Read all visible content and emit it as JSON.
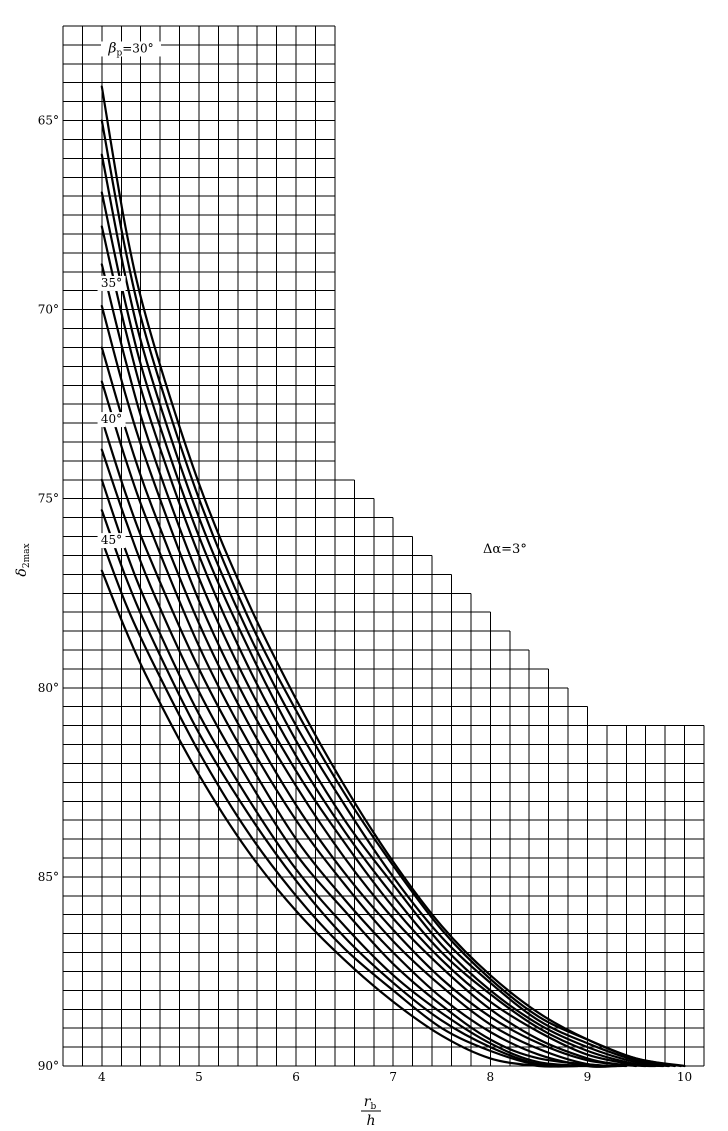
{
  "chart_data": {
    "type": "line",
    "title": "",
    "x_ticks": [
      "4",
      "5",
      "6",
      "7",
      "8",
      "9",
      "10"
    ],
    "y_ticks": [
      "65°",
      "70°",
      "75°",
      "80°",
      "85°",
      "90°"
    ],
    "xlabel": {
      "numerator": "r",
      "numerator_sub": "b",
      "denominator": "h"
    },
    "ylabel": {
      "symbol": "δ",
      "sub": "2max"
    },
    "xlim": [
      3.6,
      10.2
    ],
    "ylim": [
      62.5,
      90
    ],
    "y_reversed": true,
    "grid": true,
    "annotation": "Δα=3°",
    "series_labels": [
      {
        "text": "β",
        "sub": "p",
        "suffix": "=30°",
        "x": 4.3,
        "y": 63.2
      },
      {
        "text": "35°",
        "x": 4.1,
        "y": 69.4
      },
      {
        "text": "40°",
        "x": 4.1,
        "y": 73.0
      },
      {
        "text": "45°",
        "x": 4.1,
        "y": 76.2
      }
    ],
    "series": [
      {
        "name": "β_p=30°",
        "points": [
          [
            4.0,
            64.1
          ],
          [
            4.25,
            67.9
          ],
          [
            4.5,
            70.6
          ],
          [
            5.0,
            74.6
          ],
          [
            5.5,
            77.7
          ],
          [
            6.0,
            80.3
          ],
          [
            6.5,
            82.6
          ],
          [
            7.0,
            84.6
          ],
          [
            7.5,
            86.3
          ],
          [
            8.0,
            87.6
          ],
          [
            8.5,
            88.6
          ],
          [
            9.0,
            89.3
          ],
          [
            9.5,
            89.8
          ],
          [
            10.0,
            90.0
          ]
        ]
      },
      {
        "name": "",
        "points": [
          [
            4.0,
            65.0
          ],
          [
            4.25,
            68.5
          ],
          [
            4.5,
            71.1
          ],
          [
            5.0,
            75.0
          ],
          [
            5.5,
            78.1
          ],
          [
            6.0,
            80.6
          ],
          [
            6.5,
            82.8
          ],
          [
            7.0,
            84.7
          ],
          [
            7.5,
            86.4
          ],
          [
            8.0,
            87.7
          ],
          [
            8.5,
            88.7
          ],
          [
            9.0,
            89.3
          ],
          [
            9.5,
            89.8
          ],
          [
            9.96,
            90.0
          ]
        ]
      },
      {
        "name": "",
        "points": [
          [
            4.0,
            65.9
          ],
          [
            4.25,
            69.2
          ],
          [
            4.5,
            71.7
          ],
          [
            5.0,
            75.5
          ],
          [
            5.5,
            78.5
          ],
          [
            6.0,
            81.0
          ],
          [
            6.5,
            83.1
          ],
          [
            7.0,
            85.0
          ],
          [
            7.5,
            86.6
          ],
          [
            8.0,
            87.8
          ],
          [
            8.5,
            88.8
          ],
          [
            9.0,
            89.4
          ],
          [
            9.5,
            89.85
          ],
          [
            9.9,
            90.0
          ]
        ]
      },
      {
        "name": "",
        "points": [
          [
            4.0,
            66.9
          ],
          [
            4.25,
            69.9
          ],
          [
            4.5,
            72.3
          ],
          [
            5.0,
            76.0
          ],
          [
            5.5,
            78.9
          ],
          [
            6.0,
            81.4
          ],
          [
            6.5,
            83.5
          ],
          [
            7.0,
            85.2
          ],
          [
            7.5,
            86.8
          ],
          [
            8.0,
            88.0
          ],
          [
            8.5,
            88.9
          ],
          [
            9.0,
            89.5
          ],
          [
            9.5,
            89.9
          ],
          [
            9.84,
            90.0
          ]
        ]
      },
      {
        "name": "35°",
        "points": [
          [
            4.0,
            67.8
          ],
          [
            4.25,
            70.6
          ],
          [
            4.5,
            72.9
          ],
          [
            5.0,
            76.5
          ],
          [
            5.5,
            79.4
          ],
          [
            6.0,
            81.8
          ],
          [
            6.5,
            83.8
          ],
          [
            7.0,
            85.5
          ],
          [
            7.5,
            87.0
          ],
          [
            8.0,
            88.1
          ],
          [
            8.5,
            89.0
          ],
          [
            9.0,
            89.6
          ],
          [
            9.5,
            89.95
          ],
          [
            9.78,
            90.0
          ]
        ]
      },
      {
        "name": "",
        "points": [
          [
            4.0,
            68.8
          ],
          [
            4.25,
            71.4
          ],
          [
            4.5,
            73.6
          ],
          [
            5.0,
            77.1
          ],
          [
            5.5,
            79.9
          ],
          [
            6.0,
            82.2
          ],
          [
            6.5,
            84.1
          ],
          [
            7.0,
            85.8
          ],
          [
            7.5,
            87.2
          ],
          [
            8.0,
            88.3
          ],
          [
            8.5,
            89.1
          ],
          [
            9.0,
            89.7
          ],
          [
            9.5,
            89.97
          ],
          [
            9.7,
            90.0
          ]
        ]
      },
      {
        "name": "",
        "points": [
          [
            4.0,
            69.9
          ],
          [
            4.25,
            72.3
          ],
          [
            4.5,
            74.3
          ],
          [
            5.0,
            77.7
          ],
          [
            5.5,
            80.4
          ],
          [
            6.0,
            82.6
          ],
          [
            6.5,
            84.5
          ],
          [
            7.0,
            86.1
          ],
          [
            7.5,
            87.4
          ],
          [
            8.0,
            88.5
          ],
          [
            8.5,
            89.3
          ],
          [
            9.0,
            89.8
          ],
          [
            9.3,
            89.95
          ],
          [
            9.6,
            90.0
          ]
        ]
      },
      {
        "name": "",
        "points": [
          [
            4.0,
            71.0
          ],
          [
            4.25,
            73.2
          ],
          [
            4.5,
            75.1
          ],
          [
            5.0,
            78.3
          ],
          [
            5.5,
            80.9
          ],
          [
            6.0,
            83.1
          ],
          [
            6.5,
            84.9
          ],
          [
            7.0,
            86.4
          ],
          [
            7.5,
            87.7
          ],
          [
            8.0,
            88.7
          ],
          [
            8.5,
            89.4
          ],
          [
            9.0,
            89.85
          ],
          [
            9.5,
            90.0
          ]
        ]
      },
      {
        "name": "",
        "points": [
          [
            4.0,
            71.9
          ],
          [
            4.25,
            74.0
          ],
          [
            4.5,
            75.8
          ],
          [
            5.0,
            78.9
          ],
          [
            5.5,
            81.4
          ],
          [
            6.0,
            83.5
          ],
          [
            6.5,
            85.2
          ],
          [
            7.0,
            86.7
          ],
          [
            7.5,
            87.9
          ],
          [
            8.0,
            88.9
          ],
          [
            8.5,
            89.55
          ],
          [
            9.0,
            89.95
          ],
          [
            9.4,
            90.0
          ]
        ]
      },
      {
        "name": "40°",
        "points": [
          [
            4.0,
            72.9
          ],
          [
            4.25,
            74.9
          ],
          [
            4.5,
            76.6
          ],
          [
            5.0,
            79.5
          ],
          [
            5.5,
            81.9
          ],
          [
            6.0,
            84.0
          ],
          [
            6.5,
            85.6
          ],
          [
            7.0,
            87.0
          ],
          [
            7.5,
            88.2
          ],
          [
            8.0,
            89.1
          ],
          [
            8.5,
            89.7
          ],
          [
            9.0,
            90.0
          ],
          [
            9.3,
            90.0
          ]
        ]
      },
      {
        "name": "",
        "points": [
          [
            4.0,
            73.7
          ],
          [
            4.25,
            75.6
          ],
          [
            4.5,
            77.3
          ],
          [
            5.0,
            80.1
          ],
          [
            5.5,
            82.4
          ],
          [
            6.0,
            84.4
          ],
          [
            6.5,
            85.9
          ],
          [
            7.0,
            87.3
          ],
          [
            7.5,
            88.4
          ],
          [
            8.0,
            89.3
          ],
          [
            8.5,
            89.8
          ],
          [
            9.2,
            90.0
          ]
        ]
      },
      {
        "name": "",
        "points": [
          [
            4.0,
            74.5
          ],
          [
            4.25,
            76.4
          ],
          [
            4.5,
            78.0
          ],
          [
            5.0,
            80.7
          ],
          [
            5.5,
            82.9
          ],
          [
            6.0,
            84.8
          ],
          [
            6.5,
            86.3
          ],
          [
            7.0,
            87.6
          ],
          [
            7.5,
            88.6
          ],
          [
            8.0,
            89.4
          ],
          [
            8.5,
            89.9
          ],
          [
            9.1,
            90.0
          ]
        ]
      },
      {
        "name": "",
        "points": [
          [
            4.0,
            75.3
          ],
          [
            4.25,
            77.1
          ],
          [
            4.5,
            78.6
          ],
          [
            5.0,
            81.2
          ],
          [
            5.5,
            83.3
          ],
          [
            6.0,
            85.1
          ],
          [
            6.5,
            86.6
          ],
          [
            7.0,
            87.8
          ],
          [
            7.5,
            88.8
          ],
          [
            8.0,
            89.5
          ],
          [
            8.5,
            89.95
          ],
          [
            9.0,
            90.0
          ]
        ]
      },
      {
        "name": "45°",
        "points": [
          [
            4.0,
            76.1
          ],
          [
            4.25,
            77.8
          ],
          [
            4.5,
            79.2
          ],
          [
            5.0,
            81.7
          ],
          [
            5.5,
            83.8
          ],
          [
            6.0,
            85.5
          ],
          [
            6.5,
            86.9
          ],
          [
            7.0,
            88.0
          ],
          [
            7.5,
            89.0
          ],
          [
            8.0,
            89.6
          ],
          [
            8.5,
            89.98
          ],
          [
            8.9,
            90.0
          ]
        ]
      },
      {
        "name": "",
        "points": [
          [
            4.0,
            76.9
          ],
          [
            4.25,
            78.5
          ],
          [
            4.5,
            79.9
          ],
          [
            5.0,
            82.3
          ],
          [
            5.5,
            84.3
          ],
          [
            6.0,
            85.9
          ],
          [
            6.5,
            87.2
          ],
          [
            7.0,
            88.3
          ],
          [
            7.5,
            89.2
          ],
          [
            8.0,
            89.8
          ],
          [
            8.5,
            90.0
          ],
          [
            8.8,
            90.0
          ]
        ]
      }
    ]
  }
}
